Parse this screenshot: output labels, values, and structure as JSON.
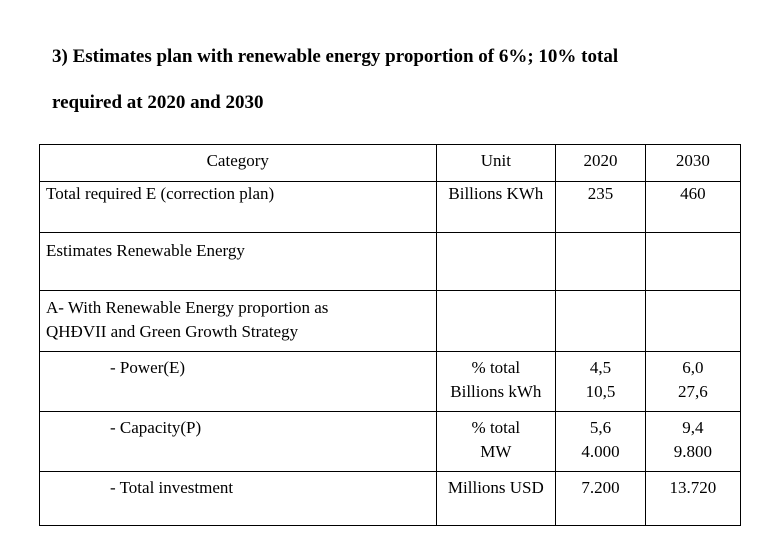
{
  "heading": {
    "line1": "3) Estimates plan with renewable energy proportion of 6%; 10% total",
    "line2": "required at 2020 and 2030"
  },
  "table": {
    "headers": {
      "category": "Category",
      "unit": "Unit",
      "y2020": "2020",
      "y2030": "2030"
    },
    "total_required": {
      "label": "Total required E (correction plan)",
      "unit": "Billions KWh",
      "y2020": "235",
      "y2030": "460"
    },
    "estimates_label": "Estimates Renewable Energy",
    "a_label_line1": "A- With Renewable Energy proportion as",
    "a_label_line2": "QHĐVII and Green Growth Strategy",
    "power": {
      "label": "- Power(E)",
      "unit_line1": "% total",
      "unit_line2": "Billions kWh",
      "y2020_line1": "4,5",
      "y2020_line2": "10,5",
      "y2030_line1": "6,0",
      "y2030_line2": "27,6"
    },
    "capacity": {
      "label": "- Capacity(P)",
      "unit_line1": "% total",
      "unit_line2": "MW",
      "y2020_line1": "5,6",
      "y2020_line2": "4.000",
      "y2030_line1": "9,4",
      "y2030_line2": "9.800"
    },
    "investment": {
      "label": "- Total investment",
      "unit": "Millions USD",
      "y2020": "7.200",
      "y2030": "13.720"
    }
  }
}
